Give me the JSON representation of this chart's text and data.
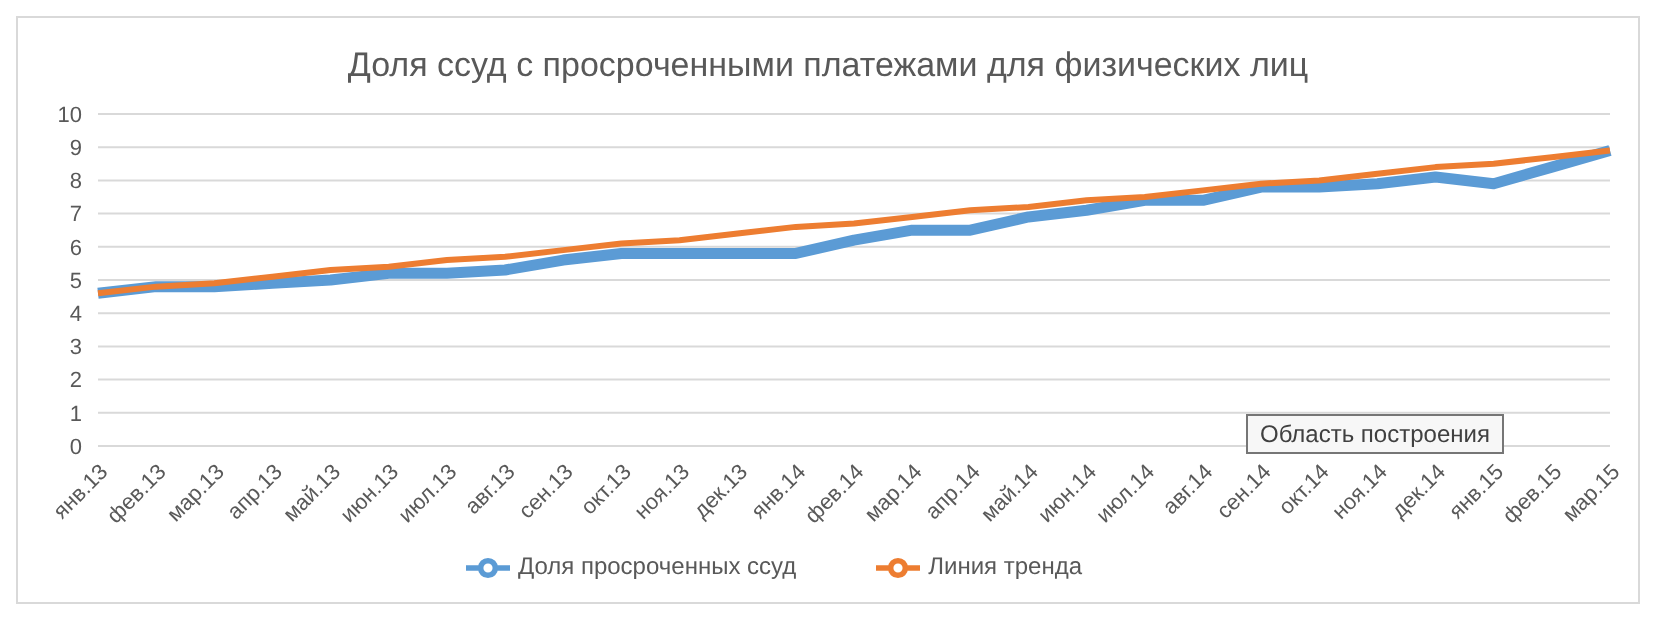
{
  "chart_data": {
    "type": "line",
    "title": "Доля ссуд с просроченными платежами для физических лиц",
    "categories": [
      "янв.13",
      "фев.13",
      "мар.13",
      "апр.13",
      "май.13",
      "июн.13",
      "июл.13",
      "авг.13",
      "сен.13",
      "окт.13",
      "ноя.13",
      "дек.13",
      "янв.14",
      "фев.14",
      "мар.14",
      "апр.14",
      "май.14",
      "июн.14",
      "июл.14",
      "авг.14",
      "сен.14",
      "окт.14",
      "ноя.14",
      "дек.14",
      "янв.15",
      "фев.15",
      "мар.15"
    ],
    "series": [
      {
        "name": "Доля просроченных ссуд",
        "color": "#5b9bd5",
        "values": [
          4.6,
          4.8,
          4.8,
          4.9,
          5.0,
          5.2,
          5.2,
          5.3,
          5.6,
          5.8,
          5.8,
          5.8,
          5.8,
          6.2,
          6.5,
          6.5,
          6.9,
          7.1,
          7.4,
          7.4,
          7.8,
          7.8,
          7.9,
          8.1,
          7.9,
          8.4,
          8.9
        ]
      },
      {
        "name": "Линия тренда",
        "color": "#ed7d31",
        "values": [
          4.6,
          4.8,
          4.9,
          5.1,
          5.3,
          5.4,
          5.6,
          5.7,
          5.9,
          6.1,
          6.2,
          6.4,
          6.6,
          6.7,
          6.9,
          7.1,
          7.2,
          7.4,
          7.5,
          7.7,
          7.9,
          8.0,
          8.2,
          8.4,
          8.5,
          8.7,
          8.9
        ]
      }
    ],
    "ylim": [
      0,
      10
    ],
    "yticks": [
      0,
      1,
      2,
      3,
      4,
      5,
      6,
      7,
      8,
      9,
      10
    ],
    "grid": "y",
    "legend": "bottom",
    "marker": "none",
    "line_style": "solid",
    "annotations": [
      "Область построения"
    ]
  }
}
